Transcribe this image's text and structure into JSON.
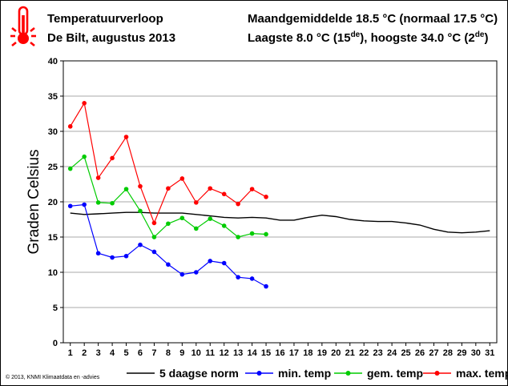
{
  "header": {
    "title": "Temperatuurverloop",
    "subtitle": "De Bilt, augustus 2013",
    "stats_mean": "Maandgemiddelde 18.5 °C (normaal 17.5 °C)",
    "stats_low_prefix": "Laagste 8.0 °C (15",
    "stats_low_sup": "de",
    "stats_high_prefix": "), hoogste 34.0 °C (2",
    "stats_high_sup": "de",
    "stats_suffix": ")",
    "icon": "thermometer-icon"
  },
  "copyright": "© 2013, KNMI Klimaatdata en -advies",
  "colors": {
    "norm": "#000000",
    "min": "#0000ff",
    "mean": "#00cc00",
    "max": "#ff0000",
    "grid": "#aaaaaa",
    "icon": "#ff0000"
  },
  "chart_data": {
    "type": "line",
    "title": "",
    "xlabel": "",
    "ylabel": "Graden Celsius",
    "xlim": [
      0.5,
      31.5
    ],
    "ylim": [
      0,
      40
    ],
    "yticks": [
      0,
      5,
      10,
      15,
      20,
      25,
      30,
      35,
      40
    ],
    "x": [
      1,
      2,
      3,
      4,
      5,
      6,
      7,
      8,
      9,
      10,
      11,
      12,
      13,
      14,
      15,
      16,
      17,
      18,
      19,
      20,
      21,
      22,
      23,
      24,
      25,
      26,
      27,
      28,
      29,
      30,
      31
    ],
    "grid": true,
    "legend_position": "bottom",
    "series": [
      {
        "name": "5 daagse norm",
        "style": "line",
        "x": [
          1,
          2,
          3,
          4,
          5,
          6,
          7,
          8,
          9,
          10,
          11,
          12,
          13,
          14,
          15,
          16,
          17,
          18,
          19,
          20,
          21,
          22,
          23,
          24,
          25,
          26,
          27,
          28,
          29,
          30,
          31
        ],
        "values": [
          18.4,
          18.2,
          18.3,
          18.4,
          18.5,
          18.5,
          18.4,
          18.4,
          18.4,
          18.2,
          18.0,
          17.8,
          17.7,
          17.8,
          17.7,
          17.4,
          17.4,
          17.8,
          18.1,
          17.9,
          17.5,
          17.3,
          17.2,
          17.2,
          17.0,
          16.7,
          16.1,
          15.7,
          15.6,
          15.7,
          15.9
        ]
      },
      {
        "name": "min. temp",
        "style": "line-marker",
        "x": [
          1,
          2,
          3,
          4,
          5,
          6,
          7,
          8,
          9,
          10,
          11,
          12,
          13,
          14,
          15
        ],
        "values": [
          19.4,
          19.6,
          12.7,
          12.1,
          12.3,
          13.9,
          12.9,
          11.1,
          9.7,
          10.0,
          11.6,
          11.3,
          9.3,
          9.1,
          8.0
        ]
      },
      {
        "name": "gem. temp",
        "style": "line-marker",
        "x": [
          1,
          2,
          3,
          4,
          5,
          6,
          7,
          8,
          9,
          10,
          11,
          12,
          13,
          14,
          15
        ],
        "values": [
          24.7,
          26.4,
          19.9,
          19.8,
          21.8,
          18.7,
          15.0,
          16.9,
          17.7,
          16.2,
          17.6,
          16.6,
          15.0,
          15.5,
          15.4
        ]
      },
      {
        "name": "max. temp",
        "style": "line-marker",
        "x": [
          1,
          2,
          3,
          4,
          5,
          6,
          7,
          8,
          9,
          10,
          11,
          12,
          13,
          14,
          15
        ],
        "values": [
          30.7,
          34.0,
          23.4,
          26.2,
          29.2,
          22.2,
          17.0,
          21.9,
          23.3,
          19.9,
          21.9,
          21.1,
          19.7,
          21.8,
          20.7
        ]
      }
    ]
  }
}
